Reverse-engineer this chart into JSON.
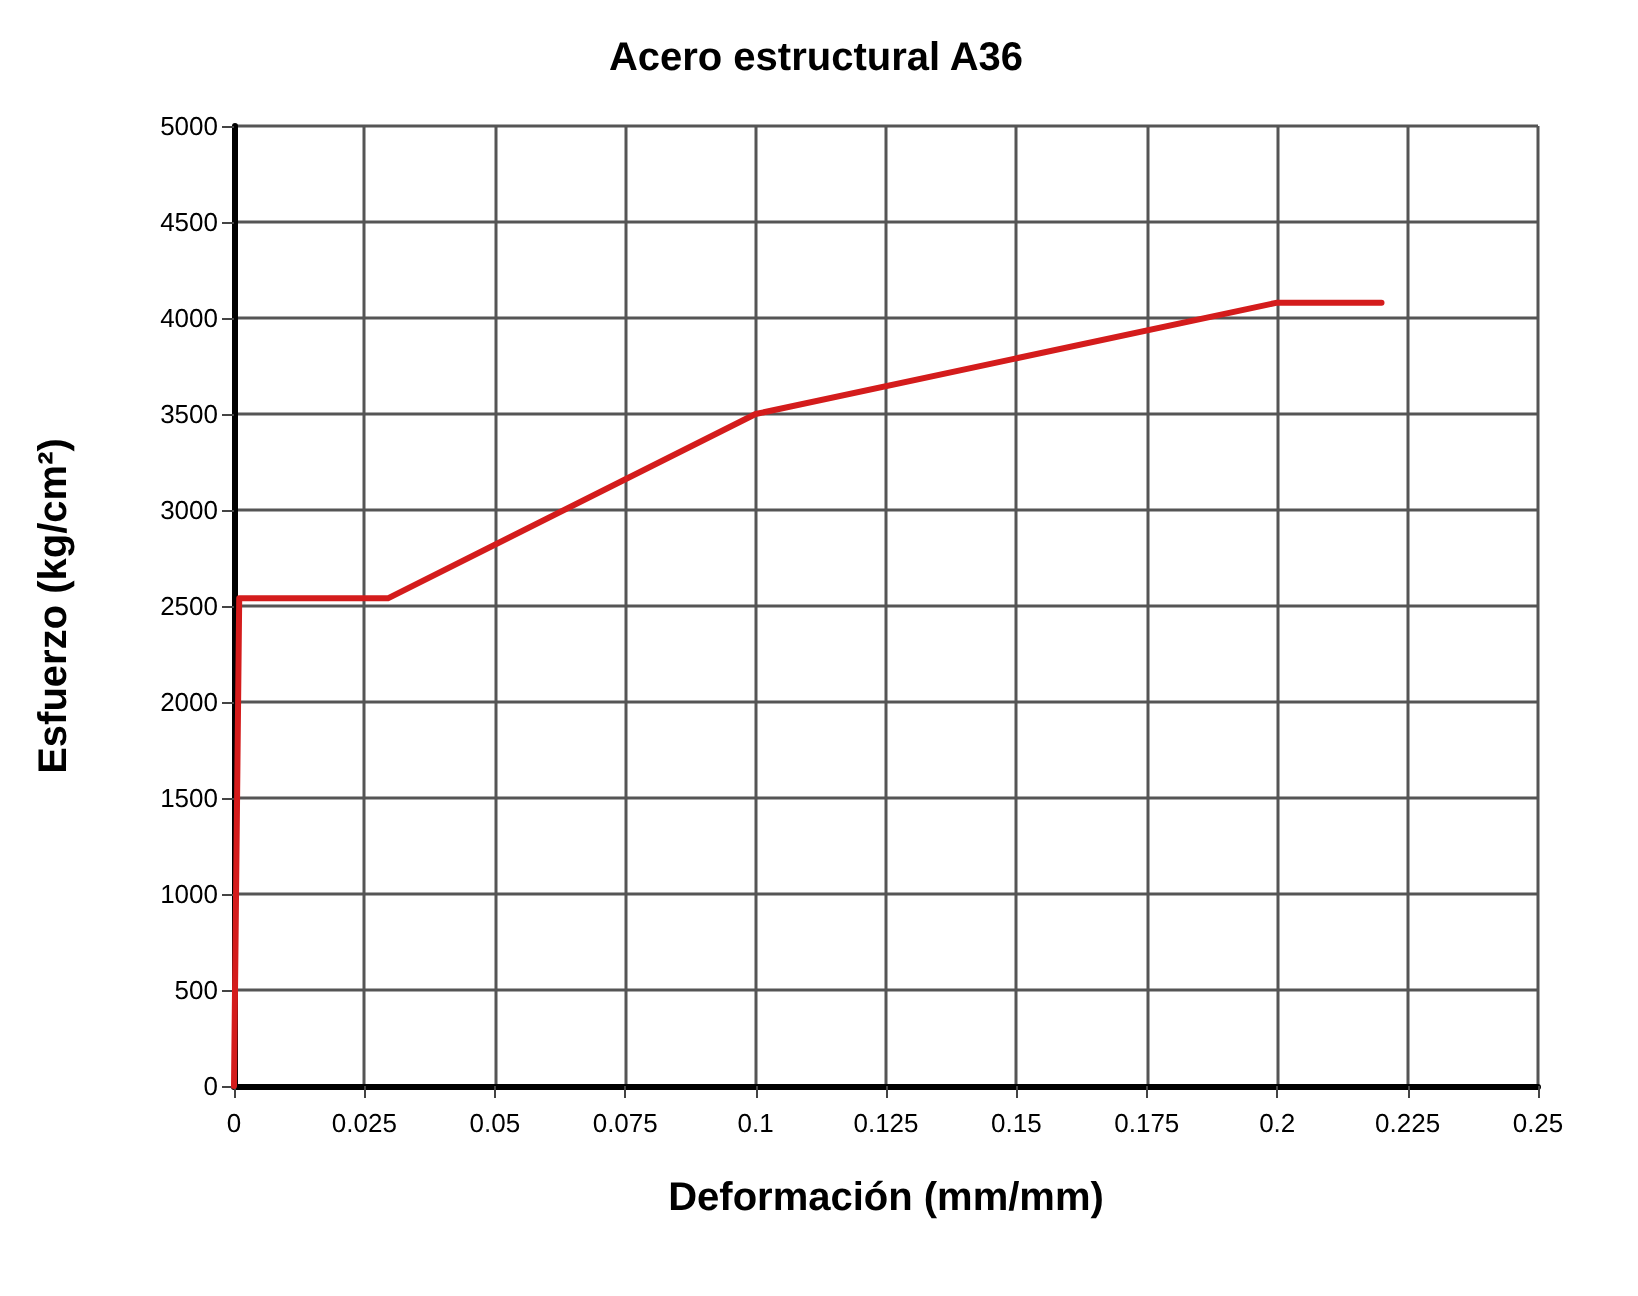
{
  "chart_data": {
    "type": "line",
    "title": "Acero estructural A36",
    "xlabel": "Deformación (mm/mm)",
    "ylabel": "Esfuerzo (kg/cm²)",
    "x": [
      0,
      0.001,
      0.0295,
      0.1,
      0.2,
      0.22
    ],
    "series": [
      {
        "color": "#d41c1c",
        "values": [
          0,
          2540,
          2540,
          3500,
          4080,
          4080
        ]
      }
    ],
    "xlim": [
      0,
      0.25
    ],
    "xticks": [
      0,
      0.025,
      0.05,
      0.075,
      0.1,
      0.125,
      0.15,
      0.175,
      0.2,
      0.225,
      0.25
    ],
    "ylim": [
      0,
      5000
    ],
    "yticks": [
      0,
      500,
      1000,
      1500,
      2000,
      2500,
      3000,
      3500,
      4000,
      4500,
      5000
    ],
    "grid": true,
    "marker": "none",
    "line_style": "solid"
  }
}
